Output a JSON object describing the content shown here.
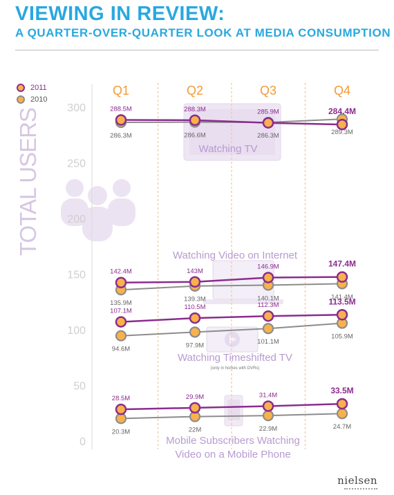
{
  "header": {
    "title": "VIEWING IN REVIEW:",
    "subtitle": "A QUARTER-OVER-QUARTER LOOK AT MEDIA CONSUMPTION"
  },
  "legend": {
    "series_2011": "2011",
    "series_2010": "2010"
  },
  "y_axis_title": "TOTAL USERS",
  "logo": "nielsen",
  "colors": {
    "title": "#29a8e0",
    "line_2011": "#8a2c8f",
    "line_2010": "#8c8c8c",
    "marker_fill": "#f9b14b",
    "quarter_label": "#f39a36"
  },
  "chart_data": {
    "type": "line",
    "categories": [
      "Q1",
      "Q2",
      "Q3",
      "Q4"
    ],
    "y_ticks": [
      0,
      50,
      100,
      150,
      200,
      250,
      300
    ],
    "ylim": [
      0,
      300
    ],
    "ylabel": "TOTAL USERS",
    "groups": [
      {
        "name": "Watching TV",
        "note": "",
        "icon": "tv-icon",
        "series": [
          {
            "name": "2011",
            "values": [
              288.5,
              288.3,
              285.9,
              284.4
            ],
            "labels": [
              "288.5M",
              "288.3M",
              "285.9M",
              "284.4M"
            ]
          },
          {
            "name": "2010",
            "values": [
              286.3,
              286.6,
              286.3,
              289.3
            ],
            "labels": [
              "286.3M",
              "286.6M",
              "286.3M",
              "289.3M"
            ]
          }
        ]
      },
      {
        "name": "Watching Video on Internet",
        "note": "",
        "icon": "laptop-icon",
        "series": [
          {
            "name": "2011",
            "values": [
              142.4,
              143,
              146.9,
              147.4
            ],
            "labels": [
              "142.4M",
              "143M",
              "146.9M",
              "147.4M"
            ]
          },
          {
            "name": "2010",
            "values": [
              135.9,
              139.3,
              140.1,
              141.4
            ],
            "labels": [
              "135.9M",
              "139.3M",
              "140.1M",
              "141.4M"
            ]
          }
        ]
      },
      {
        "name": "Watching Timeshifted TV",
        "note": "(only in homes with DVRs)",
        "icon": "dvr-play-icon",
        "series": [
          {
            "name": "2011",
            "values": [
              107.1,
              110.5,
              112.3,
              113.5
            ],
            "labels": [
              "107.1M",
              "110.5M",
              "112.3M",
              "113.5M"
            ]
          },
          {
            "name": "2010",
            "values": [
              94.6,
              97.9,
              101.1,
              105.9
            ],
            "labels": [
              "94.6M",
              "97.9M",
              "101.1M",
              "105.9M"
            ]
          }
        ]
      },
      {
        "name": "Mobile Subscribers Watching Video on a Mobile Phone",
        "note": "",
        "icon": "mobile-phone-icon",
        "series": [
          {
            "name": "2011",
            "values": [
              28.5,
              29.9,
              31.4,
              33.5
            ],
            "labels": [
              "28.5M",
              "29.9M",
              "31.4M",
              "33.5M"
            ]
          },
          {
            "name": "2010",
            "values": [
              20.3,
              22,
              22.9,
              24.7
            ],
            "labels": [
              "20.3M",
              "22M",
              "22.9M",
              "24.7M"
            ]
          }
        ]
      }
    ]
  }
}
